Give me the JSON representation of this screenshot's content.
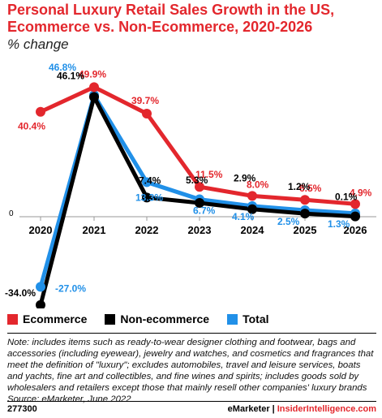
{
  "title": "Personal Luxury Retail Sales Growth in the US, Ecommerce vs. Non-Ecommerce, 2020-2026",
  "subtitle": "% change",
  "chart_data": {
    "type": "line",
    "title": "Personal Luxury Retail Sales Growth in the US, Ecommerce vs. Non-Ecommerce, 2020-2026",
    "subtitle": "% change",
    "categories": [
      "2020",
      "2021",
      "2022",
      "2023",
      "2024",
      "2025",
      "2026"
    ],
    "zero_label": "0",
    "series": [
      {
        "name": "Ecommerce",
        "color": "#e3272d",
        "values": [
          40.4,
          49.9,
          39.7,
          11.5,
          8.0,
          6.5,
          4.9
        ],
        "labels": [
          "40.4%",
          "49.9%",
          "39.7%",
          "11.5%",
          "8.0%",
          "6.5%",
          "4.9%"
        ]
      },
      {
        "name": "Non-ecommerce",
        "color": "#000000",
        "values": [
          -34.0,
          46.1,
          7.4,
          5.3,
          2.9,
          1.2,
          0.1
        ],
        "labels": [
          "-34.0%",
          "46.1%",
          "7.4%",
          "5.3%",
          "2.9%",
          "1.2%",
          "0.1%"
        ]
      },
      {
        "name": "Total",
        "color": "#2190e8",
        "values": [
          -27.0,
          46.8,
          13.3,
          6.7,
          4.1,
          2.5,
          1.3
        ],
        "labels": [
          "-27.0%",
          "46.8%",
          "13.3%",
          "6.7%",
          "4.1%",
          "2.5%",
          "1.3%"
        ]
      }
    ],
    "ylim": [
      -36,
      52
    ],
    "grid": false,
    "legend_position": "bottom-left"
  },
  "legend": [
    {
      "label": "Ecommerce",
      "color": "#e3272d"
    },
    {
      "label": "Non-ecommerce",
      "color": "#000000"
    },
    {
      "label": "Total",
      "color": "#2190e8"
    }
  ],
  "note": "Note: includes items such as ready-to-wear designer clothing and footwear, bags and accessories (including eyewear), jewelry and watches, and cosmetics and fragrances that meet the definition of \"luxury\"; excludes automobiles, travel and leisure services, boats and yachts, fine art and collectibles, and fine wines and spirits; includes goods sold by wholesalers and retailers except those that mainly resell other companies' luxury brands",
  "source": "Source: eMarketer, June 2022",
  "footer": {
    "id": "277300",
    "brand": "eMarketer",
    "divider": "|",
    "site": "InsiderIntelligence.com"
  }
}
